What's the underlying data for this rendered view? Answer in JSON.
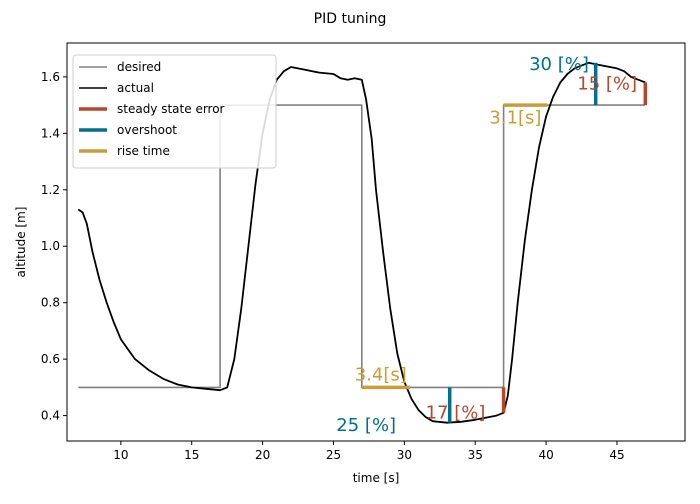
{
  "chart_data": {
    "type": "line",
    "title": "PID tuning",
    "xlabel": "time [s]",
    "ylabel": "altitude [m]",
    "xlim": [
      6.2,
      49.8
    ],
    "ylim": [
      0.31,
      1.72
    ],
    "xticks": [
      10,
      15,
      20,
      25,
      30,
      35,
      40,
      45
    ],
    "yticks": [
      0.4,
      0.6,
      0.8,
      1.0,
      1.2,
      1.4,
      1.6
    ],
    "xtick_labels": [
      "10",
      "15",
      "20",
      "25",
      "30",
      "35",
      "40",
      "45"
    ],
    "ytick_labels": [
      "0.4",
      "0.6",
      "0.8",
      "1.0",
      "1.2",
      "1.4",
      "1.6"
    ],
    "grid": false,
    "legend_position": "top-left",
    "series": [
      {
        "name": "desired",
        "color": "#808080",
        "x": [
          7,
          17,
          17,
          27,
          27,
          37,
          37,
          47
        ],
        "y": [
          0.5,
          0.5,
          1.5,
          1.5,
          0.5,
          0.5,
          1.5,
          1.5
        ]
      },
      {
        "name": "actual",
        "color": "#000000",
        "x": [
          7,
          7.3,
          7.6,
          8,
          8.5,
          9,
          9.5,
          10,
          11,
          12,
          13,
          14,
          15,
          16,
          17,
          17.5,
          18,
          18.5,
          19,
          19.5,
          20,
          20.5,
          21,
          21.5,
          22,
          22.5,
          23,
          23.5,
          24,
          25,
          25.5,
          26,
          26.5,
          27,
          27.3,
          27.7,
          28,
          28.5,
          29,
          29.5,
          30,
          30.5,
          31,
          31.5,
          32,
          33,
          34,
          35,
          36,
          36.5,
          37,
          37.3,
          37.6,
          38,
          38.5,
          39,
          39.5,
          40,
          40.5,
          41,
          41.5,
          42,
          42.5,
          43,
          43.5,
          44,
          44.5,
          45,
          45.5,
          46,
          46.5,
          47
        ],
        "y": [
          1.13,
          1.12,
          1.08,
          0.98,
          0.88,
          0.8,
          0.73,
          0.67,
          0.6,
          0.56,
          0.53,
          0.51,
          0.5,
          0.495,
          0.49,
          0.5,
          0.6,
          0.78,
          1.0,
          1.22,
          1.4,
          1.52,
          1.59,
          1.62,
          1.635,
          1.63,
          1.625,
          1.62,
          1.615,
          1.61,
          1.595,
          1.59,
          1.595,
          1.59,
          1.52,
          1.38,
          1.2,
          0.98,
          0.78,
          0.62,
          0.52,
          0.46,
          0.42,
          0.395,
          0.38,
          0.375,
          0.378,
          0.385,
          0.395,
          0.4,
          0.41,
          0.47,
          0.6,
          0.8,
          1.02,
          1.2,
          1.35,
          1.46,
          1.53,
          1.58,
          1.61,
          1.63,
          1.64,
          1.65,
          1.645,
          1.64,
          1.635,
          1.63,
          1.62,
          1.6,
          1.59,
          1.58
        ]
      }
    ],
    "annotation_series": [
      {
        "name": "steady state error",
        "color": "#b5472b"
      },
      {
        "name": "overshoot",
        "color": "#00708c"
      },
      {
        "name": "rise time",
        "color": "#c89e38"
      }
    ],
    "bars": [
      {
        "kind": "rise time",
        "color": "#c89e38",
        "orient": "h",
        "x1": 27,
        "x2": 30.4,
        "y": 0.5
      },
      {
        "kind": "rise time",
        "color": "#c89e38",
        "orient": "h",
        "x1": 37,
        "x2": 40.1,
        "y": 1.5
      },
      {
        "kind": "overshoot",
        "color": "#00708c",
        "orient": "v",
        "x": 33.2,
        "y1": 0.375,
        "y2": 0.5
      },
      {
        "kind": "overshoot",
        "color": "#00708c",
        "orient": "v",
        "x": 43.5,
        "y1": 1.5,
        "y2": 1.65
      },
      {
        "kind": "steady state error",
        "color": "#b5472b",
        "orient": "v",
        "x": 37,
        "y1": 0.41,
        "y2": 0.5
      },
      {
        "kind": "steady state error",
        "color": "#b5472b",
        "orient": "v",
        "x": 47,
        "y1": 1.5,
        "y2": 1.58
      }
    ],
    "annotations": [
      {
        "text": "3.4[s]",
        "color": "#c89e38",
        "x": 26.5,
        "y": 0.525
      },
      {
        "text": "3.1[s]",
        "color": "#c89e38",
        "x": 36.0,
        "y": 1.435
      },
      {
        "text": "25 [%]",
        "color": "#00708c",
        "x": 25.2,
        "y": 0.345
      },
      {
        "text": "30 [%]",
        "color": "#00708c",
        "x": 38.8,
        "y": 1.625
      },
      {
        "text": "17 [%]",
        "color": "#b5472b",
        "x": 31.5,
        "y": 0.39
      },
      {
        "text": "15 [%]",
        "color": "#b5472b",
        "x": 42.2,
        "y": 1.555
      }
    ]
  }
}
